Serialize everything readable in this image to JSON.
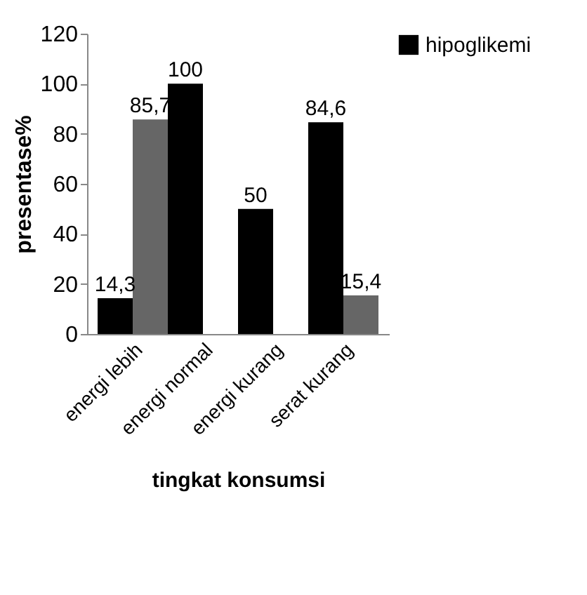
{
  "chart_data": {
    "type": "bar",
    "xlabel": "tingkat konsumsi",
    "ylabel": "presentase%",
    "categories": [
      "energi lebih",
      "energi normal",
      "energi kurang",
      "serat kurang"
    ],
    "series": [
      {
        "name": "hipoglikemi",
        "color": "#000000",
        "values": [
          14.3,
          100,
          50,
          84.6
        ],
        "value_labels": [
          "14,3",
          "100",
          "50",
          "84,6"
        ]
      },
      {
        "color": "#666666",
        "values": [
          85.7,
          0,
          0,
          15.4
        ],
        "value_labels": [
          "85,7",
          null,
          null,
          "15,4"
        ]
      }
    ],
    "ylim": [
      0,
      120
    ],
    "yticks": [
      0,
      20,
      40,
      60,
      80,
      100,
      120
    ],
    "grid": false,
    "legend": "right"
  }
}
